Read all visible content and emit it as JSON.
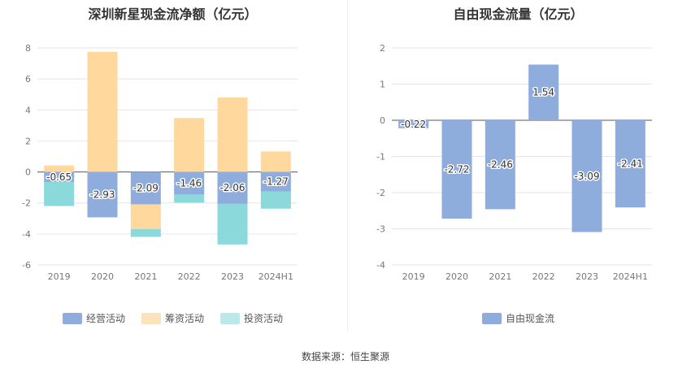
{
  "source_text": "数据来源：恒生聚源",
  "chart_data": [
    {
      "type": "bar",
      "stacked": true,
      "title": "深圳新星现金流净额（亿元）",
      "categories": [
        "2019",
        "2020",
        "2021",
        "2022",
        "2023",
        "2024H1"
      ],
      "ylim": [
        -6,
        8
      ],
      "yticks": [
        "8",
        "6",
        "4",
        "2",
        "0",
        "-2",
        "-4",
        "-6"
      ],
      "grid": true,
      "legend_position": "bottom",
      "series": [
        {
          "name": "经营活动",
          "color": "#8eacdc",
          "values": [
            -0.65,
            -2.93,
            -2.09,
            -1.46,
            -2.06,
            -1.27
          ],
          "labels": [
            "-0.65",
            "-2.93",
            "-2.09",
            "-1.46",
            "-2.06",
            "-1.27"
          ]
        },
        {
          "name": "筹资活动",
          "color": "#fed89c",
          "values": [
            0.42,
            7.75,
            -1.6,
            3.48,
            4.8,
            1.32
          ]
        },
        {
          "name": "投资活动",
          "color": "#8cd9dc",
          "values": [
            -1.55,
            0.0,
            -0.5,
            -0.52,
            -2.62,
            -1.1
          ]
        }
      ],
      "legend_colors": {
        "经营活动": "#8eacdc",
        "筹资活动": "#fde3bc",
        "投资活动": "#bde8ea"
      }
    },
    {
      "type": "bar",
      "title": "自由现金流量（亿元）",
      "categories": [
        "2019",
        "2020",
        "2021",
        "2022",
        "2023",
        "2024H1"
      ],
      "ylim": [
        -4,
        2
      ],
      "yticks": [
        "2",
        "1",
        "0",
        "-1",
        "-2",
        "-3",
        "-4"
      ],
      "grid": true,
      "legend_position": "bottom",
      "series": [
        {
          "name": "自由现金流",
          "color": "#8eacdc",
          "values": [
            -0.22,
            -2.72,
            -2.46,
            1.54,
            -3.09,
            -2.41
          ],
          "labels": [
            "-0.22",
            "-2.72",
            "-2.46",
            "1.54",
            "-3.09",
            "-2.41"
          ]
        }
      ]
    }
  ]
}
